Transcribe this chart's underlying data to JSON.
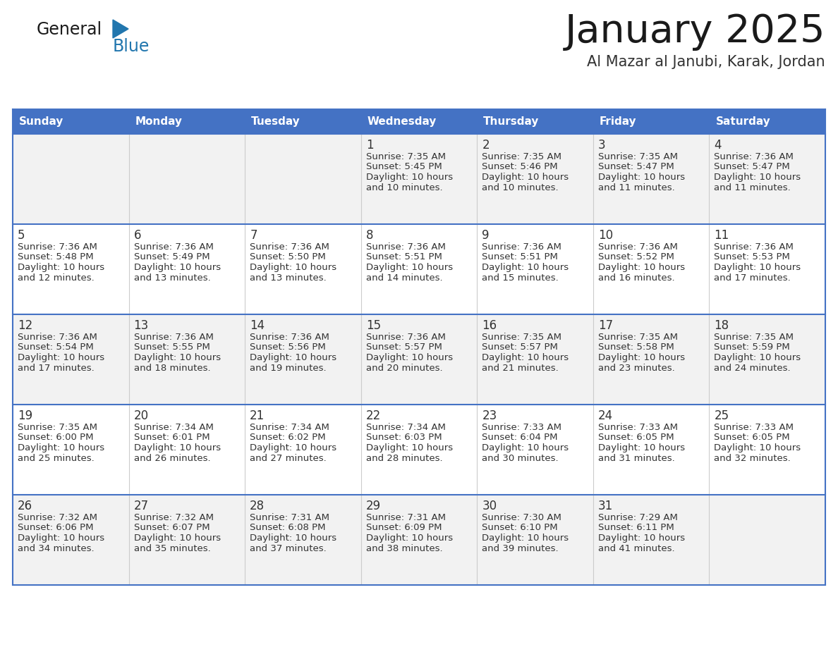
{
  "title": "January 2025",
  "subtitle": "Al Mazar al Janubi, Karak, Jordan",
  "days_of_week": [
    "Sunday",
    "Monday",
    "Tuesday",
    "Wednesday",
    "Thursday",
    "Friday",
    "Saturday"
  ],
  "header_bg_color": "#4472C4",
  "header_text_color": "#FFFFFF",
  "cell_bg_even": "#F2F2F2",
  "cell_bg_odd": "#FFFFFF",
  "cell_border_color": "#4472C4",
  "cell_inner_border": "#CCCCCC",
  "text_color": "#333333",
  "title_color": "#1a1a1a",
  "subtitle_color": "#333333",
  "logo_text_color": "#1a1a1a",
  "logo_blue_color": "#2176AE",
  "calendar": [
    [
      null,
      null,
      null,
      {
        "day": 1,
        "sunrise": "7:35 AM",
        "sunset": "5:45 PM",
        "daylight": "10 hours and 10 minutes."
      },
      {
        "day": 2,
        "sunrise": "7:35 AM",
        "sunset": "5:46 PM",
        "daylight": "10 hours and 10 minutes."
      },
      {
        "day": 3,
        "sunrise": "7:35 AM",
        "sunset": "5:47 PM",
        "daylight": "10 hours and 11 minutes."
      },
      {
        "day": 4,
        "sunrise": "7:36 AM",
        "sunset": "5:47 PM",
        "daylight": "10 hours and 11 minutes."
      }
    ],
    [
      {
        "day": 5,
        "sunrise": "7:36 AM",
        "sunset": "5:48 PM",
        "daylight": "10 hours and 12 minutes."
      },
      {
        "day": 6,
        "sunrise": "7:36 AM",
        "sunset": "5:49 PM",
        "daylight": "10 hours and 13 minutes."
      },
      {
        "day": 7,
        "sunrise": "7:36 AM",
        "sunset": "5:50 PM",
        "daylight": "10 hours and 13 minutes."
      },
      {
        "day": 8,
        "sunrise": "7:36 AM",
        "sunset": "5:51 PM",
        "daylight": "10 hours and 14 minutes."
      },
      {
        "day": 9,
        "sunrise": "7:36 AM",
        "sunset": "5:51 PM",
        "daylight": "10 hours and 15 minutes."
      },
      {
        "day": 10,
        "sunrise": "7:36 AM",
        "sunset": "5:52 PM",
        "daylight": "10 hours and 16 minutes."
      },
      {
        "day": 11,
        "sunrise": "7:36 AM",
        "sunset": "5:53 PM",
        "daylight": "10 hours and 17 minutes."
      }
    ],
    [
      {
        "day": 12,
        "sunrise": "7:36 AM",
        "sunset": "5:54 PM",
        "daylight": "10 hours and 17 minutes."
      },
      {
        "day": 13,
        "sunrise": "7:36 AM",
        "sunset": "5:55 PM",
        "daylight": "10 hours and 18 minutes."
      },
      {
        "day": 14,
        "sunrise": "7:36 AM",
        "sunset": "5:56 PM",
        "daylight": "10 hours and 19 minutes."
      },
      {
        "day": 15,
        "sunrise": "7:36 AM",
        "sunset": "5:57 PM",
        "daylight": "10 hours and 20 minutes."
      },
      {
        "day": 16,
        "sunrise": "7:35 AM",
        "sunset": "5:57 PM",
        "daylight": "10 hours and 21 minutes."
      },
      {
        "day": 17,
        "sunrise": "7:35 AM",
        "sunset": "5:58 PM",
        "daylight": "10 hours and 23 minutes."
      },
      {
        "day": 18,
        "sunrise": "7:35 AM",
        "sunset": "5:59 PM",
        "daylight": "10 hours and 24 minutes."
      }
    ],
    [
      {
        "day": 19,
        "sunrise": "7:35 AM",
        "sunset": "6:00 PM",
        "daylight": "10 hours and 25 minutes."
      },
      {
        "day": 20,
        "sunrise": "7:34 AM",
        "sunset": "6:01 PM",
        "daylight": "10 hours and 26 minutes."
      },
      {
        "day": 21,
        "sunrise": "7:34 AM",
        "sunset": "6:02 PM",
        "daylight": "10 hours and 27 minutes."
      },
      {
        "day": 22,
        "sunrise": "7:34 AM",
        "sunset": "6:03 PM",
        "daylight": "10 hours and 28 minutes."
      },
      {
        "day": 23,
        "sunrise": "7:33 AM",
        "sunset": "6:04 PM",
        "daylight": "10 hours and 30 minutes."
      },
      {
        "day": 24,
        "sunrise": "7:33 AM",
        "sunset": "6:05 PM",
        "daylight": "10 hours and 31 minutes."
      },
      {
        "day": 25,
        "sunrise": "7:33 AM",
        "sunset": "6:05 PM",
        "daylight": "10 hours and 32 minutes."
      }
    ],
    [
      {
        "day": 26,
        "sunrise": "7:32 AM",
        "sunset": "6:06 PM",
        "daylight": "10 hours and 34 minutes."
      },
      {
        "day": 27,
        "sunrise": "7:32 AM",
        "sunset": "6:07 PM",
        "daylight": "10 hours and 35 minutes."
      },
      {
        "day": 28,
        "sunrise": "7:31 AM",
        "sunset": "6:08 PM",
        "daylight": "10 hours and 37 minutes."
      },
      {
        "day": 29,
        "sunrise": "7:31 AM",
        "sunset": "6:09 PM",
        "daylight": "10 hours and 38 minutes."
      },
      {
        "day": 30,
        "sunrise": "7:30 AM",
        "sunset": "6:10 PM",
        "daylight": "10 hours and 39 minutes."
      },
      {
        "day": 31,
        "sunrise": "7:29 AM",
        "sunset": "6:11 PM",
        "daylight": "10 hours and 41 minutes."
      },
      null
    ]
  ]
}
